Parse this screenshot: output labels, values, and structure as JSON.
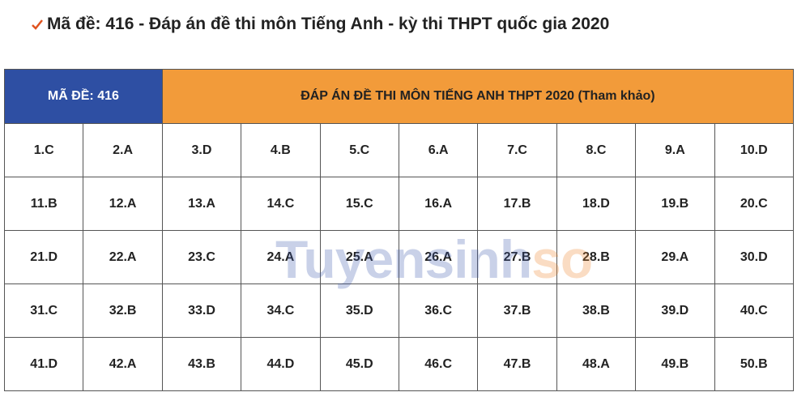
{
  "heading": "Mã đề: 416 - Đáp án đề thi môn Tiếng Anh - kỳ thi THPT quốc gia 2020",
  "table": {
    "header": [
      "MÃ ĐỀ: 416",
      "ĐÁP ÁN ĐỀ THI MÔN TIẾNG ANH THPT 2020 (Tham khảo)"
    ],
    "rows": [
      [
        "1.C",
        "2.A",
        "3.D",
        "4.B",
        "5.C",
        "6.A",
        "7.C",
        "8.C",
        "9.A",
        "10.D"
      ],
      [
        "11.B",
        "12.A",
        "13.A",
        "14.C",
        "15.C",
        "16.A",
        "17.B",
        "18.D",
        "19.B",
        "20.C"
      ],
      [
        "21.D",
        "22.A",
        "23.C",
        "24.A",
        "25.A",
        "26.A",
        "27.B",
        "28.B",
        "29.A",
        "30.D"
      ],
      [
        "31.C",
        "32.B",
        "33.D",
        "34.C",
        "35.D",
        "36.C",
        "37.B",
        "38.B",
        "39.D",
        "40.C"
      ],
      [
        "41.D",
        "42.A",
        "43.B",
        "44.D",
        "45.D",
        "46.C",
        "47.B",
        "48.A",
        "49.B",
        "50.B"
      ]
    ]
  },
  "watermark": [
    "Tuyensinh",
    "so"
  ]
}
